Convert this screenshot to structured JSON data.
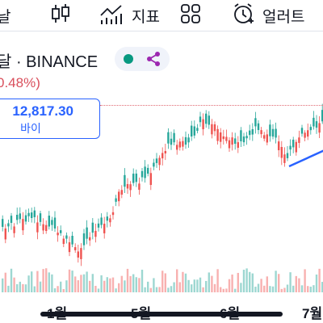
{
  "toolbar": {
    "left_fragment": "날",
    "indicators_label": "지표",
    "alert_label": "얼러트",
    "icons": [
      "candlestick-icon",
      "indicators-icon",
      "layout-icon",
      "alert-icon"
    ]
  },
  "symbol": {
    "title": "달 · BINANCE",
    "status_color": "#089981",
    "share_color": "#9c27b0"
  },
  "change_text": "0.48%)",
  "price_label": {
    "value": "12,817.30",
    "caption": "바이"
  },
  "x_axis_labels": [
    "1월",
    "5월",
    "6월",
    "7월"
  ],
  "colors": {
    "up": "#26a69a",
    "down": "#ef5350",
    "trendline": "#2962ff",
    "reference_line": "#e06a73"
  }
}
